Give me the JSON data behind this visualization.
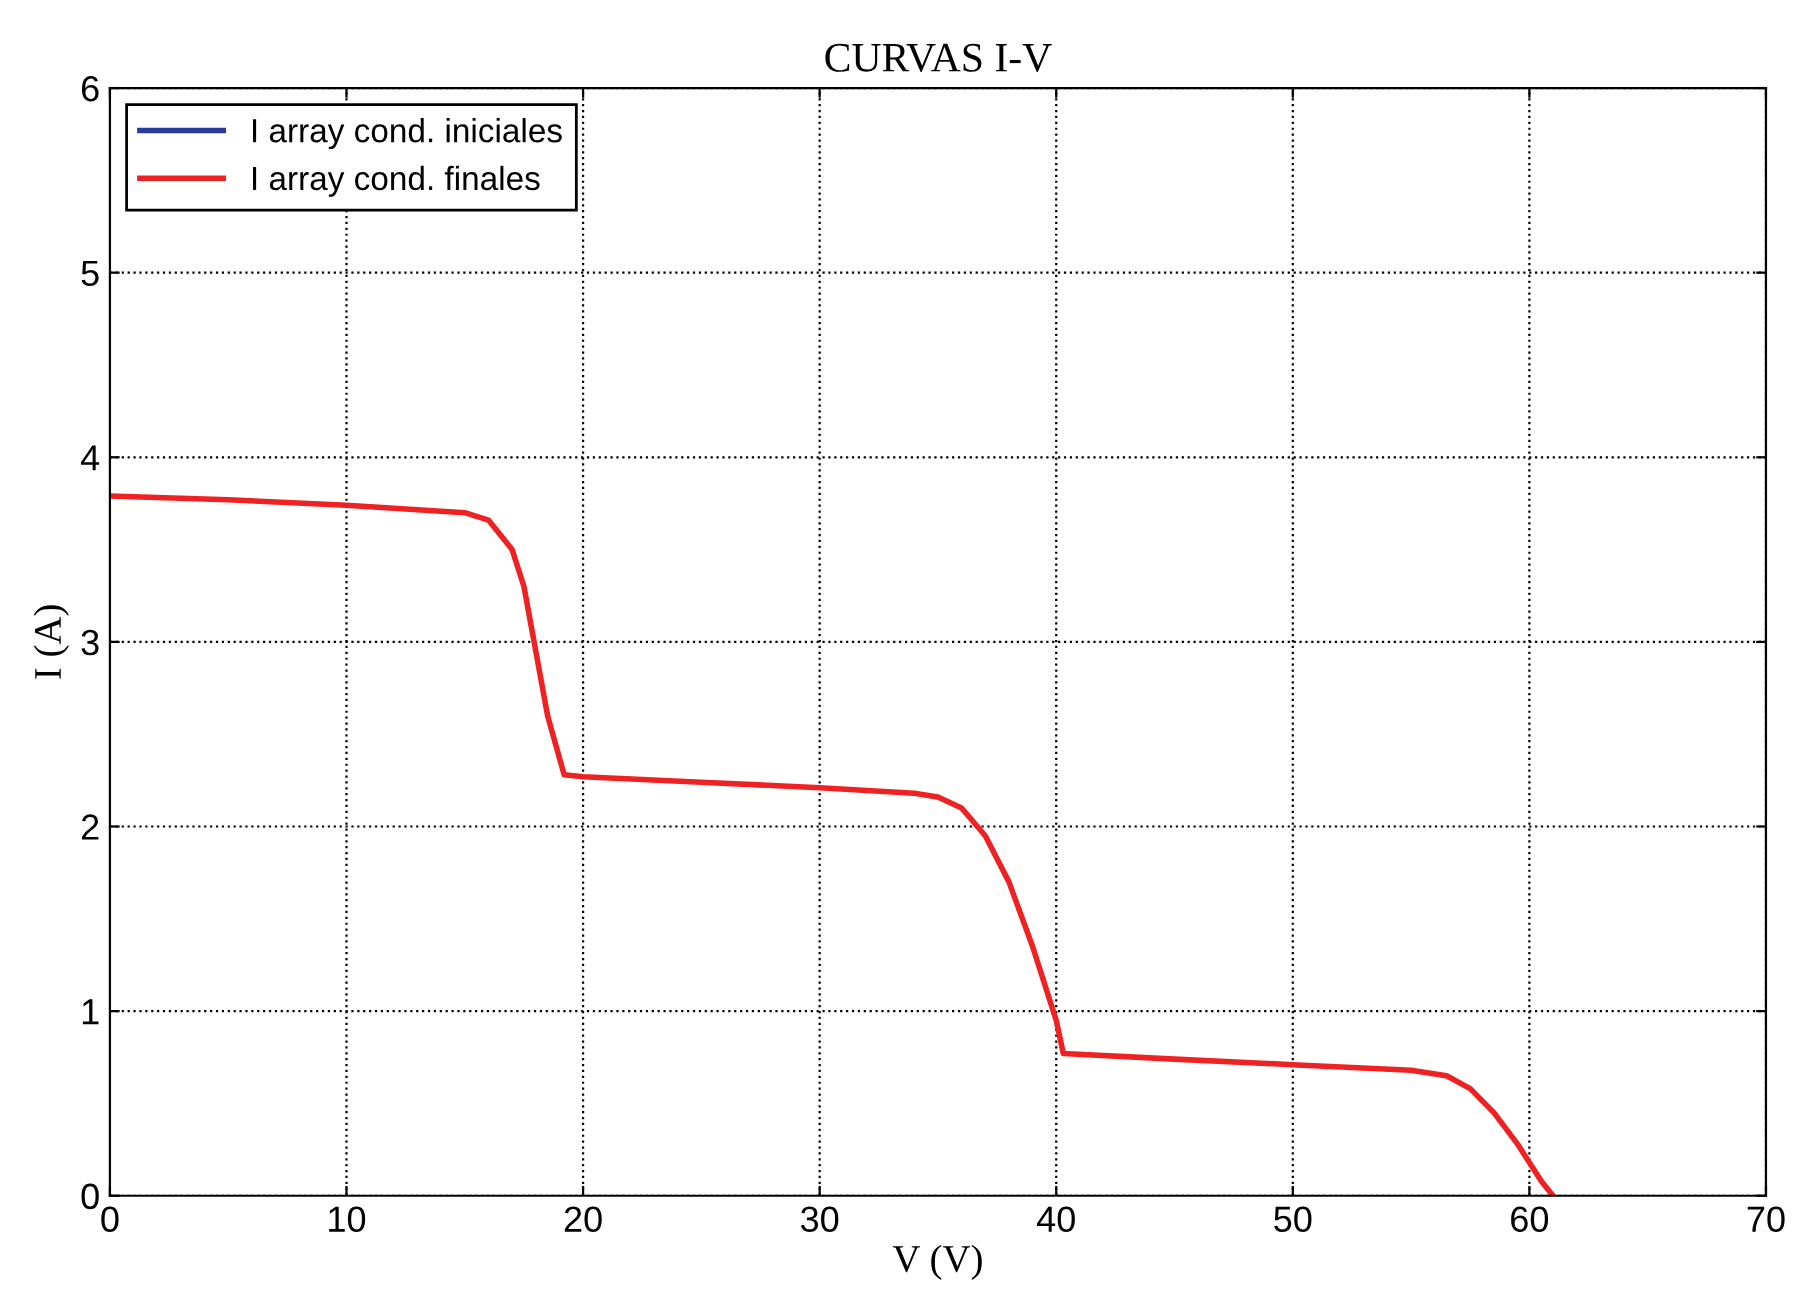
{
  "chart_data": {
    "type": "line",
    "title": "CURVAS I-V",
    "xlabel": "V (V)",
    "ylabel": "I (A)",
    "xlim": [
      0,
      70
    ],
    "xticks": [
      0,
      10,
      20,
      30,
      40,
      50,
      60,
      70
    ],
    "ylim": [
      0,
      6
    ],
    "yticks": [
      0,
      1,
      2,
      3,
      4,
      5,
      6
    ],
    "grid": true,
    "legend": "top left",
    "line_style": "solid",
    "marker": "none",
    "series": [
      {
        "name": "I array cond. iniciales",
        "color": "#2a3a9a",
        "values": [
          null
        ]
      },
      {
        "name": "I array cond. finales",
        "color": "#ee2222",
        "x": [
          0,
          5,
          10,
          15,
          16,
          17,
          17.5,
          18,
          18.5,
          19.2,
          20,
          25,
          30,
          34,
          35,
          36,
          37,
          38,
          39,
          40,
          40.3,
          45,
          50,
          55,
          56.5,
          57.5,
          58.5,
          59.5,
          60.5,
          61
        ],
        "values": [
          3.79,
          3.77,
          3.74,
          3.7,
          3.66,
          3.5,
          3.3,
          2.95,
          2.6,
          2.28,
          2.27,
          2.24,
          2.21,
          2.18,
          2.16,
          2.1,
          1.95,
          1.7,
          1.35,
          0.95,
          0.77,
          0.74,
          0.71,
          0.68,
          0.65,
          0.58,
          0.45,
          0.28,
          0.08,
          0
        ]
      }
    ]
  }
}
